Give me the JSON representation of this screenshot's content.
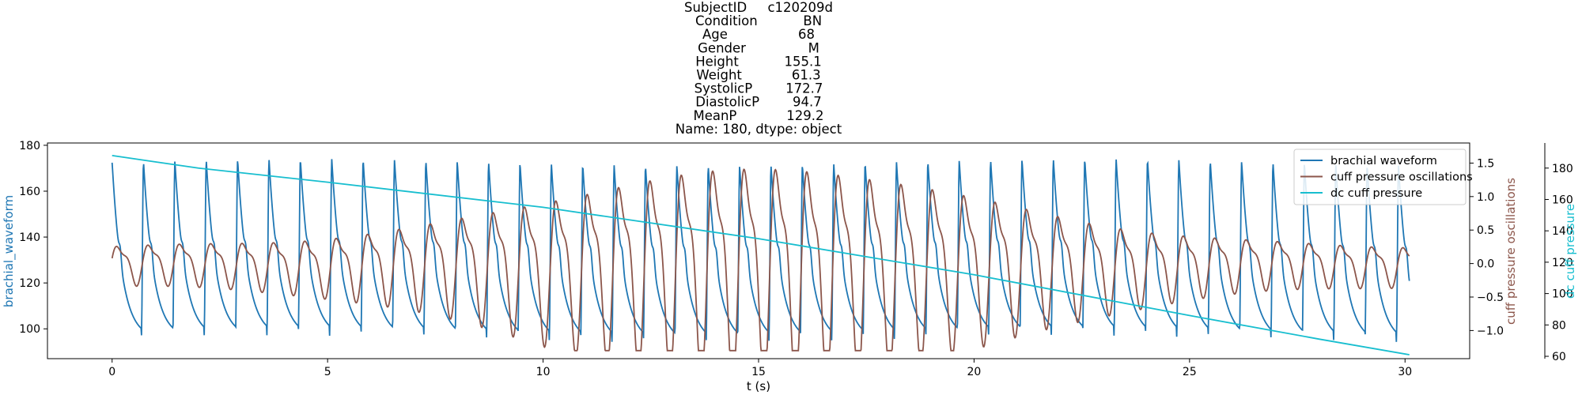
{
  "chart_data": {
    "type": "line",
    "title_lines": [
      "SubjectID     c120209d",
      "Condition           BN",
      "Age                 68",
      "Gender               M",
      "Height           155.1",
      "Weight            61.3",
      "SystolicP        172.7",
      "DiastolicP        94.7",
      "MeanP            129.2",
      "Name: 180, dtype: object"
    ],
    "xlabel": "t (s)",
    "ylabel_left": "brachial_waveform",
    "ylabel_right1": "cuff pressure oscillations",
    "ylabel_right2": "dc cuff pressure",
    "xlim": [
      -1.5,
      31.5
    ],
    "xticks": [
      0,
      5,
      10,
      15,
      20,
      25,
      30
    ],
    "ylim_left": [
      87,
      181
    ],
    "yticks_left": [
      100,
      120,
      140,
      160,
      180
    ],
    "ylim_right1": [
      -1.42,
      1.8
    ],
    "yticks_right1": [
      -1.0,
      -0.5,
      0.0,
      0.5,
      1.0,
      1.5
    ],
    "yticks_right1_labels": [
      "−1.0",
      "−0.5",
      "0.0",
      "0.5",
      "1.0",
      "1.5"
    ],
    "ylim_right2": [
      58.5,
      196
    ],
    "yticks_right2": [
      60,
      80,
      100,
      120,
      140,
      160,
      180
    ],
    "legend_position": "top-right",
    "colors": {
      "brachial": "#1f77b4",
      "oscillations": "#8c564b",
      "dc": "#17becf"
    },
    "series": [
      {
        "name": "brachial waveform",
        "color": "#1f77b4",
        "axis": "left",
        "t_start": 0,
        "t_end": 30.1,
        "beat_period": 0.728,
        "systolic": 172.5,
        "diastolic": 95.5
      },
      {
        "name": "cuff pressure oscillations",
        "color": "#8c564b",
        "axis": "right1",
        "t_start": 0,
        "t_end": 30.1,
        "beat_period": 0.728,
        "peak_time": 15.2,
        "peak_amplitude": 1.75,
        "trough_min": -1.3
      },
      {
        "name": "dc cuff pressure",
        "color": "#17becf",
        "axis": "right2",
        "x": [
          0,
          1,
          2,
          5,
          10,
          15,
          20,
          25,
          28,
          30.1
        ],
        "y": [
          188,
          184,
          180,
          171,
          155,
          135,
          112,
          86,
          71,
          61
        ]
      }
    ]
  }
}
